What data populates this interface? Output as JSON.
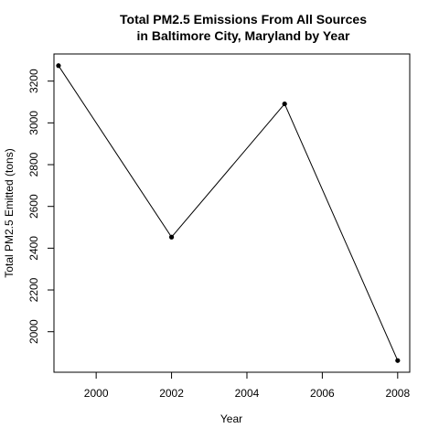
{
  "chart_data": {
    "type": "line",
    "title": [
      "Total PM2.5 Emissions From All Sources",
      "in Baltimore City, Maryland by Year"
    ],
    "xlabel": "Year",
    "ylabel": "Total PM2.5 Emitted (tons)",
    "x": [
      1999,
      2002,
      2005,
      2008
    ],
    "series": [
      {
        "values": [
          3274,
          2453,
          3091,
          1862
        ]
      }
    ],
    "xlim": [
      1998.88,
      2008.32
    ],
    "ylim": [
      1806,
      3330
    ],
    "xticks": [
      2000,
      2002,
      2004,
      2006,
      2008
    ],
    "yticks": [
      2000,
      2200,
      2400,
      2600,
      2800,
      3000,
      3200
    ],
    "grid": false,
    "markers": "filled-circle",
    "line_color": "#000000"
  }
}
